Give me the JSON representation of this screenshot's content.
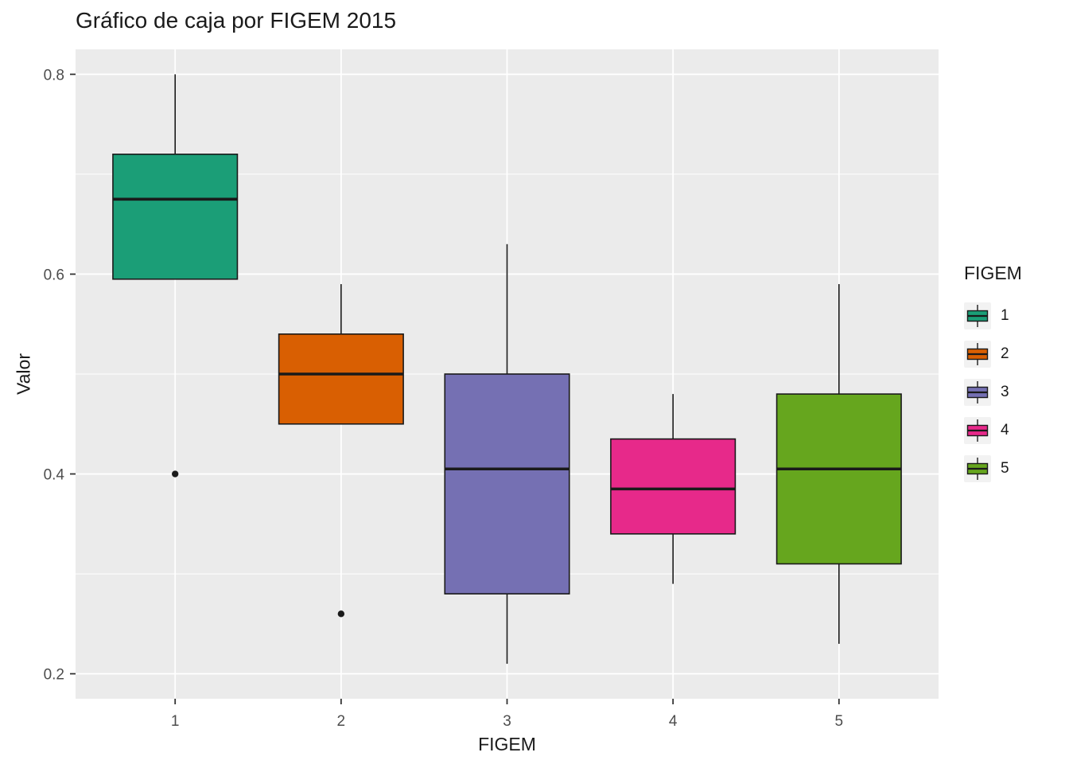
{
  "chart_data": {
    "type": "boxplot",
    "title": "Gráfico de caja por FIGEM 2015",
    "xlabel": "FIGEM",
    "ylabel": "Valor",
    "legend_title": "FIGEM",
    "legend_position": "right",
    "ylim": [
      0.175,
      0.825
    ],
    "y_tick_labels": [
      "0.2",
      "0.4",
      "0.6",
      "0.8"
    ],
    "y_major_gridlines": [
      0.2,
      0.4,
      0.6,
      0.8
    ],
    "y_minor_gridlines": [
      0.3,
      0.5,
      0.7
    ],
    "categories": [
      "1",
      "2",
      "3",
      "4",
      "5"
    ],
    "panel_background": "#EBEBEB",
    "gridline_color": "#FFFFFF",
    "box_outline_color": "#1A1A1A",
    "series": [
      {
        "group": "1",
        "color": "#1B9E77",
        "whisker_low": 0.595,
        "q1": 0.595,
        "median": 0.675,
        "q3": 0.72,
        "whisker_high": 0.8,
        "outliers": [
          0.4
        ]
      },
      {
        "group": "2",
        "color": "#D95F02",
        "whisker_low": 0.45,
        "q1": 0.45,
        "median": 0.5,
        "q3": 0.54,
        "whisker_high": 0.59,
        "outliers": [
          0.26
        ]
      },
      {
        "group": "3",
        "color": "#7570B3",
        "whisker_low": 0.21,
        "q1": 0.28,
        "median": 0.405,
        "q3": 0.5,
        "whisker_high": 0.63,
        "outliers": []
      },
      {
        "group": "4",
        "color": "#E7298A",
        "whisker_low": 0.29,
        "q1": 0.34,
        "median": 0.385,
        "q3": 0.435,
        "whisker_high": 0.48,
        "outliers": []
      },
      {
        "group": "5",
        "color": "#66A61E",
        "whisker_low": 0.23,
        "q1": 0.31,
        "median": 0.405,
        "q3": 0.48,
        "whisker_high": 0.59,
        "outliers": []
      }
    ]
  }
}
